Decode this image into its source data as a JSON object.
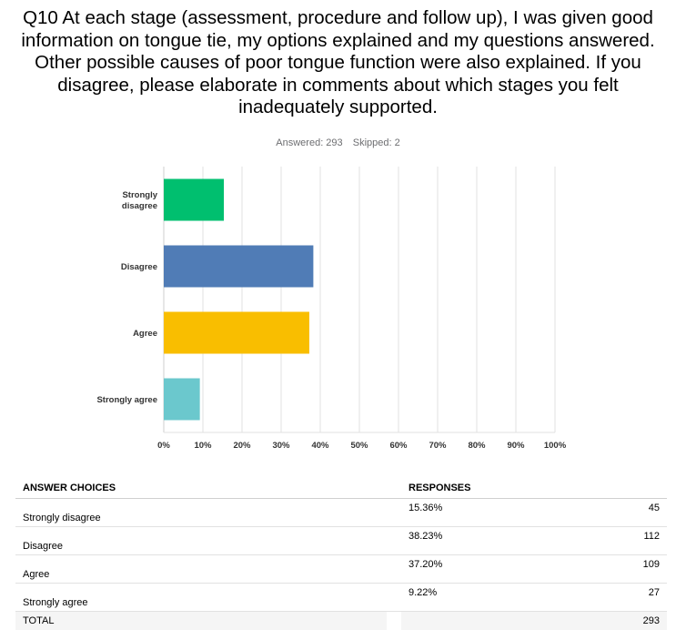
{
  "question": "Q10 At each stage (assessment, procedure and follow up), I was given good information on tongue tie, my options explained and my questions answered.  Other possible causes of poor tongue function were also explained. If you disagree, please elaborate in comments about which stages you felt inadequately supported.",
  "stats": {
    "answered": "Answered: 293",
    "skipped": "Skipped: 2"
  },
  "chart_data": {
    "type": "bar",
    "orientation": "horizontal",
    "categories": [
      "Strongly disagree",
      "Disagree",
      "Agree",
      "Strongly agree"
    ],
    "values": [
      15.36,
      38.23,
      37.2,
      9.22
    ],
    "xlim": [
      0,
      100
    ],
    "ticks": [
      "0%",
      "10%",
      "20%",
      "30%",
      "40%",
      "50%",
      "60%",
      "70%",
      "80%",
      "90%",
      "100%"
    ],
    "grid": true,
    "colors": [
      "#00bf6f",
      "#507cb6",
      "#f9be00",
      "#6bc8cd"
    ]
  },
  "table": {
    "headers": {
      "choices": "ANSWER CHOICES",
      "responses": "RESPONSES"
    },
    "rows": [
      {
        "choice": "Strongly disagree",
        "percent": "15.36%",
        "count": "45"
      },
      {
        "choice": "Disagree",
        "percent": "38.23%",
        "count": "112"
      },
      {
        "choice": "Agree",
        "percent": "37.20%",
        "count": "109"
      },
      {
        "choice": "Strongly agree",
        "percent": "9.22%",
        "count": "27"
      }
    ],
    "total": {
      "label": "TOTAL",
      "count": "293"
    }
  }
}
